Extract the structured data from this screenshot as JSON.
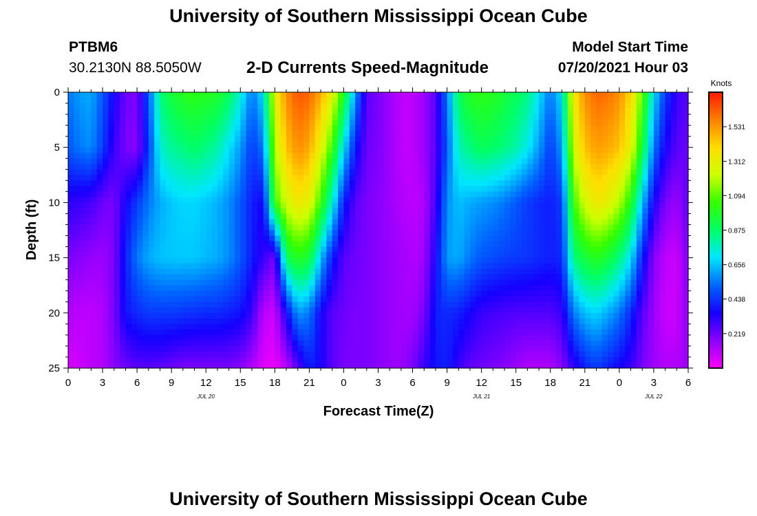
{
  "header": {
    "title": "University of Southern Mississippi Ocean Cube",
    "station": "PTBM6",
    "coords": "30.2130N  88.5050W",
    "model_start_label": "Model Start Time",
    "model_start_value": "07/20/2021 Hour 03"
  },
  "footer": {
    "title": "University of Southern Mississippi Ocean Cube"
  },
  "colors": {
    "scale": [
      "#ff00ff",
      "#8c00ff",
      "#1500ff",
      "#0066ff",
      "#00e6ff",
      "#00ff66",
      "#33ff00",
      "#ccff00",
      "#ffdd00",
      "#ff8000",
      "#ff1900"
    ]
  },
  "chart_data": {
    "type": "heatmap",
    "title": "2-D Currents Speed-Magnitude",
    "xlabel": "Forecast Time(Z)",
    "ylabel": "Depth (ft)",
    "x_tick_labels": [
      "0",
      "3",
      "6",
      "9",
      "12",
      "15",
      "18",
      "21",
      "0",
      "3",
      "6",
      "9",
      "12",
      "15",
      "18",
      "21",
      "0",
      "3",
      "6"
    ],
    "x_range_hours": [
      0,
      54
    ],
    "date_labels": [
      {
        "text": "JUL 20",
        "hour": 12
      },
      {
        "text": "JUL 21",
        "hour": 36
      },
      {
        "text": "JUL 22",
        "hour": 51
      }
    ],
    "y_ticks": [
      0,
      5,
      10,
      15,
      20,
      25
    ],
    "ylim": [
      0,
      25
    ],
    "colorbar": {
      "unit": "Knots",
      "ticks": [
        "1.531",
        "1.312",
        "1.094",
        "0.875",
        "0.656",
        "0.438",
        "0.219"
      ],
      "range": [
        0,
        1.75
      ]
    },
    "hours": [
      0,
      1,
      2,
      3,
      4,
      5,
      6,
      7,
      8,
      9,
      10,
      11,
      12,
      13,
      14,
      15,
      16,
      17,
      18,
      19,
      20,
      21,
      22,
      23,
      24,
      25,
      26,
      27,
      28,
      29,
      30,
      31,
      32,
      33,
      34,
      35,
      36,
      37,
      38,
      39,
      40,
      41,
      42,
      43,
      44,
      45,
      46,
      47,
      48,
      49,
      50,
      51,
      52,
      53,
      54
    ],
    "depths": [
      0,
      5,
      10,
      15,
      20,
      25
    ],
    "speed_knots": [
      [
        0.55,
        0.6,
        0.62,
        0.5,
        0.35,
        0.22,
        0.2,
        0.5,
        0.85,
        0.95,
        1.0,
        1.02,
        1.0,
        0.98,
        0.9,
        0.75,
        0.55,
        0.7,
        1.3,
        1.55,
        1.65,
        1.62,
        1.5,
        1.3,
        1.0,
        0.6,
        0.25,
        0.2,
        0.15,
        0.1,
        0.1,
        0.15,
        0.25,
        0.55,
        0.9,
        1.0,
        1.02,
        1.0,
        0.95,
        0.9,
        0.85,
        0.7,
        0.55,
        0.7,
        1.35,
        1.55,
        1.62,
        1.6,
        1.55,
        1.4,
        1.1,
        0.7,
        0.45,
        0.3,
        0.25
      ],
      [
        0.5,
        0.55,
        0.58,
        0.45,
        0.3,
        0.2,
        0.18,
        0.45,
        0.75,
        0.82,
        0.85,
        0.88,
        0.85,
        0.8,
        0.7,
        0.6,
        0.45,
        0.55,
        1.2,
        1.45,
        1.55,
        1.5,
        1.3,
        1.05,
        0.7,
        0.4,
        0.22,
        0.2,
        0.15,
        0.1,
        0.1,
        0.15,
        0.25,
        0.5,
        0.78,
        0.85,
        0.9,
        0.88,
        0.85,
        0.8,
        0.72,
        0.6,
        0.45,
        0.6,
        1.25,
        1.45,
        1.52,
        1.5,
        1.45,
        1.3,
        0.95,
        0.55,
        0.35,
        0.25,
        0.22
      ],
      [
        0.32,
        0.3,
        0.28,
        0.22,
        0.2,
        0.35,
        0.45,
        0.55,
        0.62,
        0.66,
        0.68,
        0.68,
        0.66,
        0.63,
        0.58,
        0.5,
        0.4,
        0.35,
        1.05,
        1.25,
        1.35,
        1.3,
        1.05,
        0.75,
        0.4,
        0.25,
        0.2,
        0.18,
        0.15,
        0.12,
        0.1,
        0.12,
        0.28,
        0.58,
        0.65,
        0.62,
        0.6,
        0.58,
        0.55,
        0.5,
        0.45,
        0.42,
        0.4,
        0.45,
        1.05,
        1.25,
        1.35,
        1.3,
        1.2,
        1.0,
        0.65,
        0.35,
        0.2,
        0.15,
        0.25
      ],
      [
        0.2,
        0.18,
        0.16,
        0.15,
        0.2,
        0.4,
        0.55,
        0.62,
        0.65,
        0.66,
        0.66,
        0.66,
        0.64,
        0.62,
        0.58,
        0.5,
        0.4,
        0.3,
        0.2,
        0.9,
        1.0,
        0.95,
        0.65,
        0.4,
        0.25,
        0.22,
        0.2,
        0.18,
        0.16,
        0.14,
        0.12,
        0.14,
        0.35,
        0.6,
        0.62,
        0.55,
        0.5,
        0.48,
        0.46,
        0.45,
        0.44,
        0.42,
        0.4,
        0.42,
        0.85,
        0.95,
        1.0,
        0.95,
        0.85,
        0.7,
        0.4,
        0.18,
        0.1,
        0.08,
        0.2
      ],
      [
        0.12,
        0.1,
        0.1,
        0.12,
        0.2,
        0.38,
        0.42,
        0.45,
        0.45,
        0.45,
        0.44,
        0.43,
        0.42,
        0.42,
        0.4,
        0.38,
        0.3,
        0.1,
        0.08,
        0.35,
        0.6,
        0.55,
        0.35,
        0.25,
        0.22,
        0.2,
        0.2,
        0.18,
        0.16,
        0.14,
        0.14,
        0.2,
        0.4,
        0.42,
        0.4,
        0.35,
        0.3,
        0.28,
        0.27,
        0.26,
        0.26,
        0.26,
        0.26,
        0.3,
        0.55,
        0.65,
        0.68,
        0.62,
        0.55,
        0.42,
        0.25,
        0.15,
        0.08,
        0.08,
        0.18
      ],
      [
        0.06,
        0.08,
        0.1,
        0.12,
        0.18,
        0.22,
        0.25,
        0.25,
        0.24,
        0.22,
        0.2,
        0.2,
        0.2,
        0.2,
        0.2,
        0.18,
        0.12,
        0.05,
        0.03,
        0.1,
        0.25,
        0.4,
        0.35,
        0.25,
        0.2,
        0.2,
        0.2,
        0.18,
        0.16,
        0.15,
        0.2,
        0.3,
        0.38,
        0.4,
        0.3,
        0.24,
        0.22,
        0.2,
        0.18,
        0.15,
        0.12,
        0.12,
        0.12,
        0.18,
        0.3,
        0.4,
        0.45,
        0.4,
        0.35,
        0.3,
        0.2,
        0.15,
        0.12,
        0.12,
        0.15
      ]
    ]
  }
}
